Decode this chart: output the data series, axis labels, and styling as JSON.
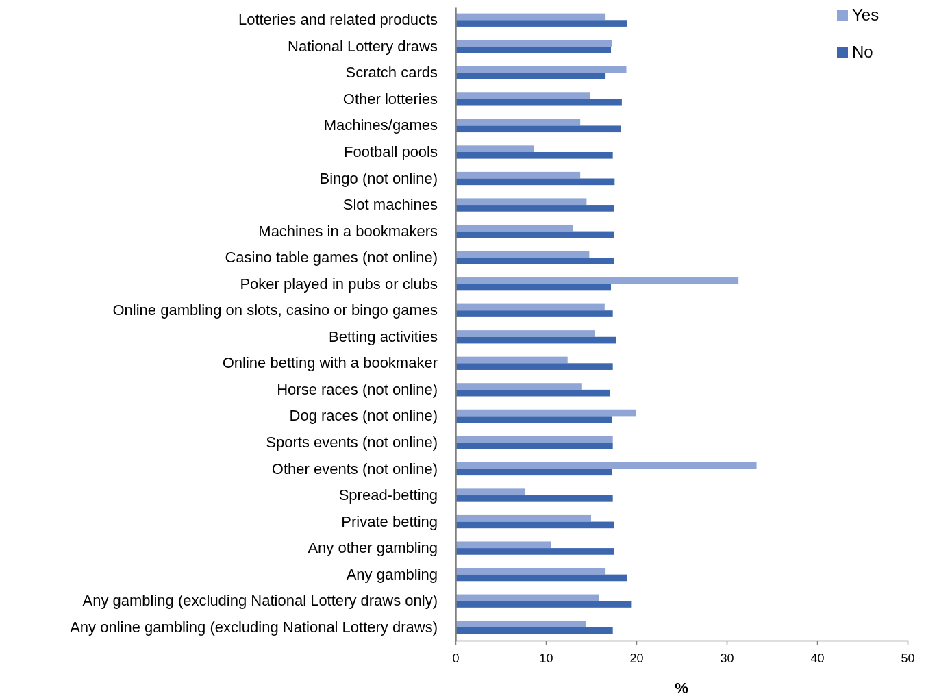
{
  "chart_data": {
    "type": "bar",
    "orientation": "horizontal",
    "xlabel": "%",
    "categories": [
      "Lotteries and related products",
      "National Lottery draws",
      "Scratch cards",
      "Other lotteries",
      "Machines/games",
      "Football pools",
      "Bingo (not online)",
      "Slot machines",
      "Machines in a bookmakers",
      "Casino table games (not online)",
      "Poker played in pubs or clubs",
      "Online gambling on slots, casino or bingo games",
      "Betting activities",
      "Online betting with a bookmaker",
      "Horse races (not online)",
      "Dog races (not online)",
      "Sports events (not online)",
      "Other events (not online)",
      "Spread-betting",
      "Private betting",
      "Any other gambling",
      "Any gambling",
      "Any gambling (excluding National Lottery draws only)",
      "Any online gambling (excluding National Lottery draws)"
    ],
    "series": [
      {
        "name": "Yes",
        "color": "#8ea5d6",
        "values": [
          16.6,
          17.3,
          18.9,
          14.9,
          13.8,
          8.7,
          13.8,
          14.5,
          13.0,
          14.8,
          31.3,
          16.5,
          15.4,
          12.4,
          14.0,
          20.0,
          17.4,
          33.3,
          7.7,
          15.0,
          10.6,
          16.6,
          15.9,
          14.4
        ]
      },
      {
        "name": "No",
        "color": "#3c66ae",
        "values": [
          19.0,
          17.2,
          16.6,
          18.4,
          18.3,
          17.4,
          17.6,
          17.5,
          17.5,
          17.5,
          17.2,
          17.4,
          17.8,
          17.4,
          17.1,
          17.3,
          17.4,
          17.3,
          17.4,
          17.5,
          17.5,
          19.0,
          19.5,
          17.4
        ]
      }
    ],
    "xlim": [
      0,
      50
    ],
    "xticks": [
      0,
      10,
      20,
      30,
      40,
      50
    ],
    "grid": false,
    "legend": "top right"
  }
}
